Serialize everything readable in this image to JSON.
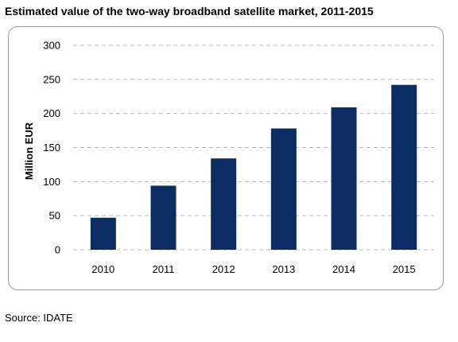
{
  "chart_data": {
    "type": "bar",
    "title": "Estimated value of the two-way broadband satellite market, 2011-2015",
    "xlabel": "",
    "ylabel": "Million EUR",
    "categories": [
      "2010",
      "2011",
      "2012",
      "2013",
      "2014",
      "2015"
    ],
    "values": [
      47,
      94,
      134,
      178,
      209,
      242
    ],
    "ylim": [
      0,
      300
    ],
    "yticks": [
      0,
      50,
      100,
      150,
      200,
      250,
      300
    ],
    "ytick_labels": [
      "0",
      "50",
      "100",
      "150",
      "200",
      "250",
      "300"
    ],
    "grid": true,
    "legend": "none",
    "bar_color": "#0b2d64",
    "grid_color": "#b7b7b7"
  },
  "source": "Source: IDATE"
}
